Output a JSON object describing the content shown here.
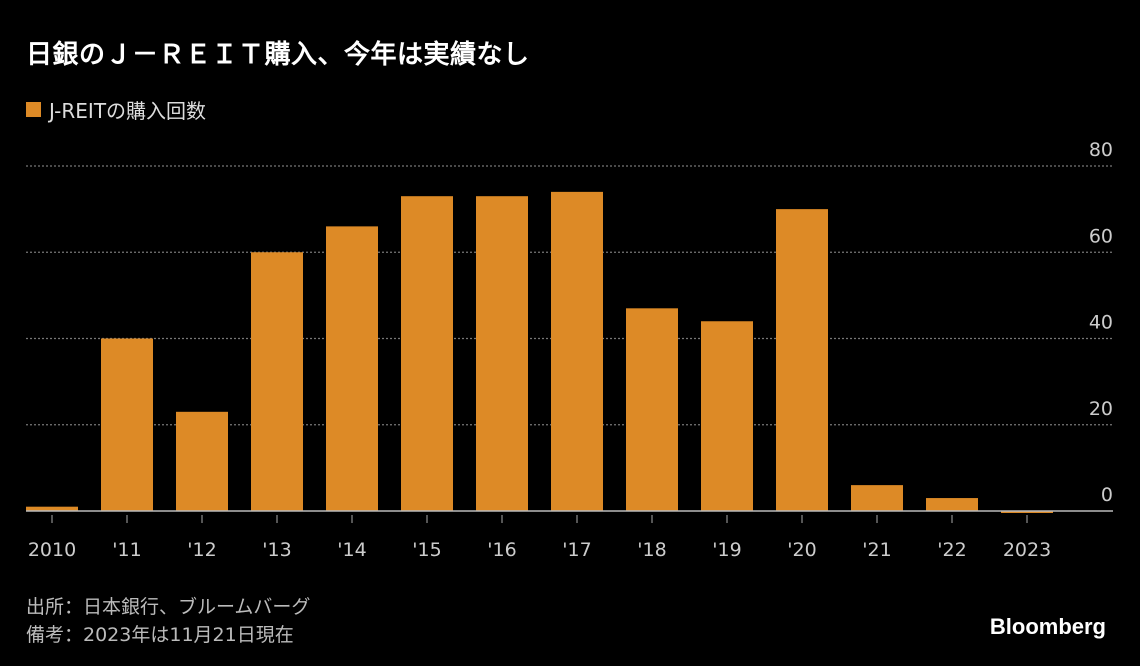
{
  "title": "日銀のＪ－ＲＥＩＴ購入、今年は実績なし",
  "footer": {
    "source": "出所：日本銀行、ブルームバーグ",
    "note": "備考：2023年は11月21日現在"
  },
  "logo": "Bloomberg",
  "colors": {
    "bar": "#dd8a26",
    "background": "#000000",
    "grid": "#777777"
  },
  "chart_data": {
    "type": "bar",
    "categories": [
      "2010",
      "'11",
      "'12",
      "'13",
      "'14",
      "'15",
      "'16",
      "'17",
      "'18",
      "'19",
      "'20",
      "'21",
      "'22",
      "2023"
    ],
    "series": [
      {
        "name": "J-REITの購入回数",
        "values": [
          1,
          40,
          23,
          60,
          66,
          73,
          73,
          74,
          47,
          44,
          70,
          6,
          3,
          0
        ]
      }
    ],
    "ylim": [
      0,
      80
    ],
    "yticks": [
      0,
      20,
      40,
      60,
      80
    ],
    "grid": true,
    "legend": "top-left",
    "yaxis_side": "right"
  }
}
